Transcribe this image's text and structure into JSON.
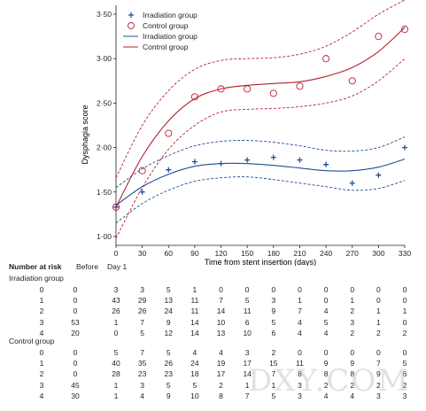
{
  "chart_data": {
    "type": "line",
    "xlabel": "Time from stent insertion (days)",
    "ylabel": "Dysphagia score",
    "xlim": [
      0,
      330
    ],
    "ylim": [
      0.9,
      3.6
    ],
    "x_ticks": [
      "0",
      "30",
      "60",
      "90",
      "120",
      "150",
      "180",
      "210",
      "240",
      "270",
      "300",
      "330"
    ],
    "y_ticks": [
      "1·00",
      "1·50",
      "2·00",
      "2·50",
      "3·00",
      "3·50"
    ],
    "legend_position": "top-left",
    "legend": [
      "Irradiation group",
      "Control group",
      "Irradiation group",
      "Control group"
    ],
    "colors": {
      "irradiation": "#1d4f91",
      "control": "#b5202e",
      "axis": "#231f20"
    },
    "series": [
      {
        "name": "Irradiation group",
        "kind": "points",
        "marker": "plus",
        "color": "#1d4f91",
        "x": [
          0,
          30,
          60,
          90,
          120,
          150,
          180,
          210,
          240,
          270,
          300,
          330
        ],
        "y": [
          1.33,
          1.5,
          1.75,
          1.84,
          1.82,
          1.86,
          1.89,
          1.86,
          1.81,
          1.6,
          1.69,
          2.0
        ]
      },
      {
        "name": "Control group",
        "kind": "points",
        "marker": "circle",
        "color": "#b5202e",
        "x": [
          0,
          30,
          60,
          90,
          120,
          150,
          180,
          210,
          240,
          270,
          300,
          330
        ],
        "y": [
          1.33,
          1.74,
          2.16,
          2.57,
          2.66,
          2.66,
          2.61,
          2.69,
          3.0,
          2.75,
          3.25,
          3.33
        ]
      },
      {
        "name": "Irradiation group",
        "kind": "fit",
        "color": "#1d4f91",
        "x": [
          0,
          30,
          60,
          90,
          120,
          150,
          180,
          210,
          240,
          270,
          300,
          330
        ],
        "y": [
          1.35,
          1.56,
          1.7,
          1.79,
          1.82,
          1.82,
          1.8,
          1.77,
          1.74,
          1.74,
          1.78,
          1.87
        ],
        "lower": [
          1.15,
          1.37,
          1.52,
          1.62,
          1.66,
          1.67,
          1.64,
          1.6,
          1.56,
          1.52,
          1.54,
          1.63
        ],
        "upper": [
          1.55,
          1.76,
          1.91,
          2.02,
          2.07,
          2.08,
          2.06,
          2.02,
          1.97,
          1.96,
          2.0,
          2.12
        ]
      },
      {
        "name": "Control group",
        "kind": "fit",
        "color": "#b5202e",
        "x": [
          0,
          30,
          60,
          90,
          120,
          150,
          180,
          210,
          240,
          270,
          300,
          330
        ],
        "y": [
          1.33,
          1.9,
          2.3,
          2.55,
          2.66,
          2.7,
          2.72,
          2.74,
          2.8,
          2.9,
          3.08,
          3.35
        ],
        "lower": [
          0.98,
          1.55,
          1.98,
          2.25,
          2.4,
          2.43,
          2.44,
          2.46,
          2.5,
          2.58,
          2.75,
          3.0
        ],
        "upper": [
          1.66,
          2.25,
          2.64,
          2.88,
          2.98,
          3.0,
          3.01,
          3.05,
          3.14,
          3.3,
          3.5,
          3.66
        ]
      }
    ]
  },
  "risk_table": {
    "title": "Number at risk",
    "before_label": "Before",
    "day1_label": "Day 1",
    "groups": [
      {
        "name": "Irradiation group",
        "rows": [
          {
            "score": "0",
            "values": [
              "0",
              "3",
              "3",
              "5",
              "1",
              "0",
              "0",
              "0",
              "0",
              "0",
              "0",
              "0",
              "0"
            ]
          },
          {
            "score": "1",
            "values": [
              "0",
              "43",
              "29",
              "13",
              "11",
              "7",
              "5",
              "3",
              "1",
              "0",
              "1",
              "0",
              "0"
            ]
          },
          {
            "score": "2",
            "values": [
              "0",
              "26",
              "26",
              "24",
              "11",
              "14",
              "11",
              "9",
              "7",
              "4",
              "2",
              "1",
              "1"
            ]
          },
          {
            "score": "3",
            "values": [
              "53",
              "1",
              "7",
              "9",
              "14",
              "10",
              "6",
              "5",
              "4",
              "5",
              "3",
              "1",
              "0"
            ]
          },
          {
            "score": "4",
            "values": [
              "20",
              "0",
              "5",
              "12",
              "14",
              "13",
              "10",
              "6",
              "4",
              "4",
              "2",
              "2",
              "2"
            ]
          }
        ]
      },
      {
        "name": "Control group",
        "rows": [
          {
            "score": "0",
            "values": [
              "0",
              "5",
              "7",
              "5",
              "4",
              "4",
              "3",
              "2",
              "0",
              "0",
              "0",
              "0",
              "0"
            ]
          },
          {
            "score": "1",
            "values": [
              "0",
              "40",
              "35",
              "26",
              "24",
              "19",
              "17",
              "15",
              "11",
              "9",
              "9",
              "7",
              "5"
            ]
          },
          {
            "score": "2",
            "values": [
              "0",
              "28",
              "23",
              "23",
              "18",
              "17",
              "14",
              "7",
              "8",
              "8",
              "8",
              "9",
              "6"
            ]
          },
          {
            "score": "3",
            "values": [
              "45",
              "1",
              "3",
              "5",
              "5",
              "2",
              "1",
              "1",
              "3",
              "2",
              "2",
              "2",
              "2"
            ]
          },
          {
            "score": "4",
            "values": [
              "30",
              "1",
              "4",
              "9",
              "10",
              "8",
              "7",
              "5",
              "3",
              "4",
              "4",
              "3",
              "3"
            ]
          }
        ]
      }
    ]
  },
  "watermark": "DXY.COM"
}
